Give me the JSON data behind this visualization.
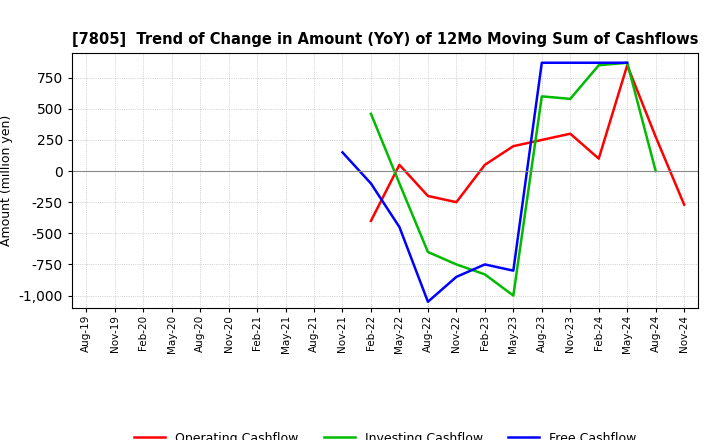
{
  "title": "[7805]  Trend of Change in Amount (YoY) of 12Mo Moving Sum of Cashflows",
  "ylabel": "Amount (million yen)",
  "ylim": [
    -1100,
    950
  ],
  "yticks": [
    -1000,
    -750,
    -500,
    -250,
    0,
    250,
    500,
    750
  ],
  "x_labels": [
    "Aug-19",
    "Nov-19",
    "Feb-20",
    "May-20",
    "Aug-20",
    "Nov-20",
    "Feb-21",
    "May-21",
    "Aug-21",
    "Nov-21",
    "Feb-22",
    "May-22",
    "Aug-22",
    "Nov-22",
    "Feb-23",
    "May-23",
    "Aug-23",
    "Nov-23",
    "Feb-24",
    "May-24",
    "Aug-24",
    "Nov-24"
  ],
  "operating": [
    null,
    null,
    null,
    null,
    null,
    null,
    null,
    null,
    null,
    null,
    -400,
    50,
    -200,
    -250,
    50,
    200,
    250,
    300,
    100,
    850,
    275,
    -270
  ],
  "investing": [
    null,
    null,
    null,
    null,
    null,
    null,
    null,
    null,
    null,
    null,
    460,
    -100,
    -650,
    -750,
    -830,
    -1000,
    600,
    580,
    850,
    870,
    0,
    null
  ],
  "free": [
    null,
    null,
    null,
    null,
    null,
    null,
    null,
    null,
    null,
    150,
    -100,
    -450,
    -1050,
    -850,
    -750,
    -800,
    870,
    870,
    870,
    870,
    null,
    null
  ],
  "operating_color": "#ff0000",
  "investing_color": "#00bb00",
  "free_color": "#0000ff",
  "background_color": "#ffffff",
  "grid_color": "#c8c8c8"
}
